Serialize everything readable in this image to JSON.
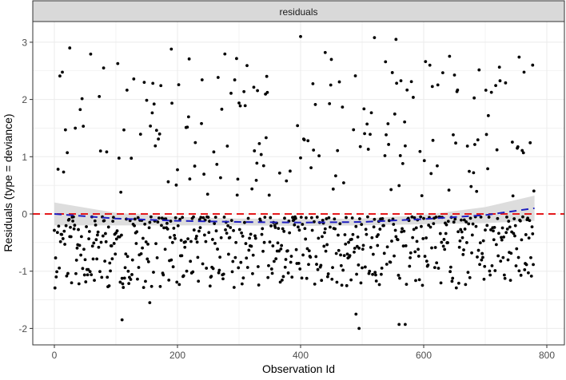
{
  "chart_data": {
    "type": "scatter",
    "title": "",
    "facet_label": "residuals",
    "xlabel": "Observation Id",
    "ylabel": "Residuals (type = deviance)",
    "xlim": [
      -35,
      820
    ],
    "ylim": [
      -2.25,
      3.3
    ],
    "x_ticks": [
      0,
      200,
      400,
      600,
      800
    ],
    "y_ticks": [
      -2,
      -1,
      0,
      1,
      2,
      3
    ],
    "grid": true,
    "reference_line": {
      "y": 0,
      "color": "#e41a1c",
      "style": "dashed"
    },
    "smooth_line": {
      "color": "#1f1fbf",
      "style": "dashed",
      "x": [
        0,
        100,
        200,
        300,
        400,
        500,
        600,
        700,
        780
      ],
      "y": [
        0.0,
        -0.08,
        -0.12,
        -0.14,
        -0.15,
        -0.14,
        -0.09,
        -0.02,
        0.1
      ]
    },
    "confidence_band": {
      "color": "#d9d9d9",
      "x": [
        0,
        100,
        200,
        300,
        400,
        500,
        600,
        700,
        780
      ],
      "upper": [
        0.2,
        0.02,
        -0.05,
        -0.08,
        -0.09,
        -0.08,
        -0.02,
        0.12,
        0.32
      ],
      "lower": [
        -0.2,
        -0.2,
        -0.2,
        -0.2,
        -0.21,
        -0.2,
        -0.18,
        -0.16,
        -0.12
      ]
    },
    "point_color": "#000000",
    "n_points": 780,
    "highlight_points": [
      {
        "x": 25,
        "y": 2.9
      },
      {
        "x": 80,
        "y": 2.55
      },
      {
        "x": 190,
        "y": 2.88
      },
      {
        "x": 400,
        "y": 3.1
      },
      {
        "x": 520,
        "y": 3.08
      },
      {
        "x": 555,
        "y": 3.05
      },
      {
        "x": 440,
        "y": 2.82
      },
      {
        "x": 755,
        "y": 2.74
      },
      {
        "x": 777,
        "y": 2.6
      },
      {
        "x": 110,
        "y": -1.85
      },
      {
        "x": 495,
        "y": -2.0
      },
      {
        "x": 560,
        "y": -1.93
      },
      {
        "x": 570,
        "y": -1.93
      },
      {
        "x": 155,
        "y": -1.55
      },
      {
        "x": 490,
        "y": -1.75
      }
    ]
  },
  "axis": {
    "x_tick_labels": [
      "0",
      "200",
      "400",
      "600",
      "800"
    ],
    "y_tick_labels": [
      "-2",
      "-1",
      "0",
      "1",
      "2",
      "3"
    ]
  }
}
